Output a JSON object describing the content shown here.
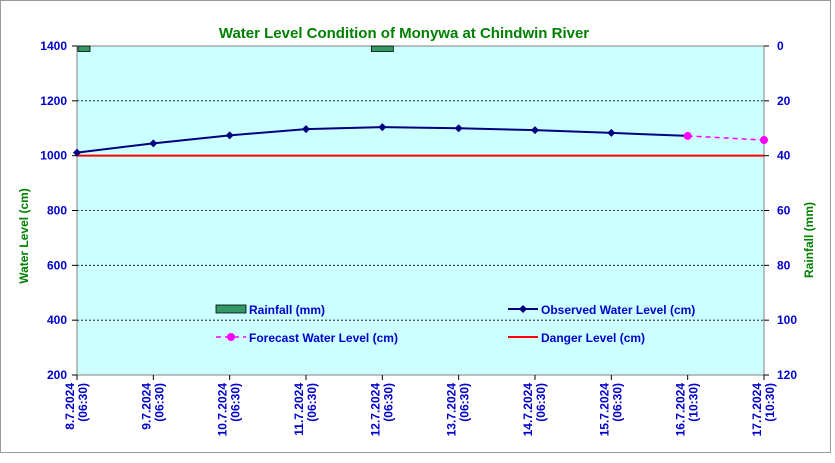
{
  "chart_data": {
    "type": "line",
    "title": "Water Level Condition of Monywa at Chindwin River",
    "ylabel": "Water Level (cm)",
    "y2label": "Rainfall (mm)",
    "ylim": [
      200,
      1400
    ],
    "y_ticks": [
      "1400",
      "1200",
      "1000",
      "800",
      "600",
      "400",
      "200"
    ],
    "y2lim": [
      0,
      120
    ],
    "y2_ticks": [
      "0",
      "20",
      "40",
      "60",
      "80",
      "100",
      "120"
    ],
    "y2_inverted": true,
    "grid": true,
    "x": [
      {
        "date": "8.7.2024",
        "time": "(06:30)"
      },
      {
        "date": "9.7.2024",
        "time": "(06:30)"
      },
      {
        "date": "10.7.2024",
        "time": "(06:30)"
      },
      {
        "date": "11.7.2024",
        "time": "(06:30)"
      },
      {
        "date": "12.7.2024",
        "time": "(06:30)"
      },
      {
        "date": "13.7.2024",
        "time": "(06:30)"
      },
      {
        "date": "14.7.2024",
        "time": "(06:30)"
      },
      {
        "date": "15.7.2024",
        "time": "(06:30)"
      },
      {
        "date": "16.7.2024",
        "time": "(10:30)"
      },
      {
        "date": "17.7.2024",
        "time": "(10:30)"
      }
    ],
    "series": [
      {
        "name": "Rainfall (mm)",
        "kind": "bar",
        "axis": "right",
        "color": "#339966",
        "values": [
          2,
          null,
          null,
          null,
          2,
          null,
          null,
          null,
          null,
          null
        ]
      },
      {
        "name": "Observed Water Level (cm)",
        "kind": "line",
        "axis": "left",
        "color": "#000080",
        "values": [
          1011,
          1045,
          1074,
          1097,
          1104,
          1100,
          1093,
          1083,
          1072,
          null
        ]
      },
      {
        "name": "Forecast Water Level (cm)",
        "kind": "dashed-line",
        "axis": "left",
        "color": "#ff00ff",
        "values": [
          null,
          null,
          null,
          null,
          null,
          null,
          null,
          null,
          1072,
          1057
        ]
      },
      {
        "name": "Danger Level (cm)",
        "kind": "line",
        "axis": "left",
        "color": "#ff0000",
        "values": [
          1000,
          1000,
          1000,
          1000,
          1000,
          1000,
          1000,
          1000,
          1000,
          1000
        ]
      }
    ],
    "legend_placement": "inside-bottom",
    "colors": {
      "plot_background": "#ccffff",
      "title": "#008000",
      "axis_title": "#008000",
      "tick_label": "#0000cc"
    }
  }
}
